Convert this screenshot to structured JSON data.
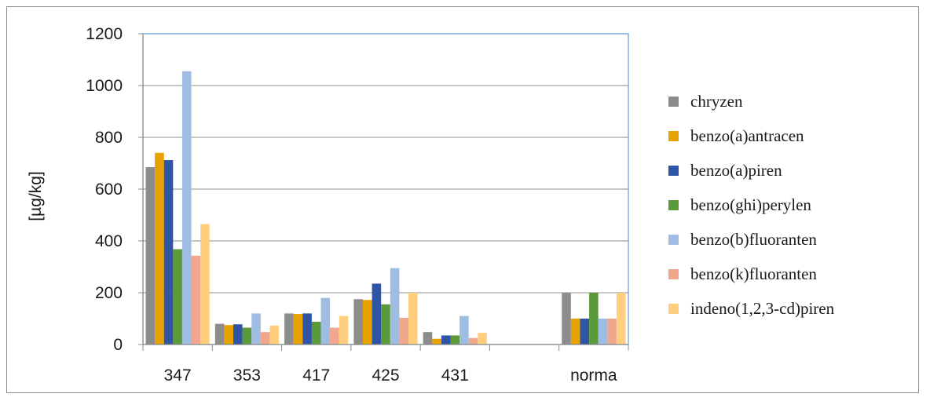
{
  "chart_data": {
    "type": "bar",
    "ylabel": "[µg/kg]",
    "xlabel": "",
    "title": "",
    "ylim": [
      0,
      1200
    ],
    "yticks": [
      0,
      200,
      400,
      600,
      800,
      1000,
      1200
    ],
    "categories": [
      "347",
      "353",
      "417",
      "425",
      "431",
      "",
      "norma"
    ],
    "grid": true,
    "legend_position": "right",
    "series": [
      {
        "name": "chryzen",
        "color": "#8c8c8c",
        "values": [
          685,
          80,
          120,
          175,
          48,
          null,
          200
        ]
      },
      {
        "name": "benzo(a)antracen",
        "color": "#e8a200",
        "values": [
          740,
          75,
          118,
          172,
          22,
          null,
          100
        ]
      },
      {
        "name": "benzo(a)piren",
        "color": "#2f55a4",
        "values": [
          712,
          78,
          120,
          235,
          35,
          null,
          100
        ]
      },
      {
        "name": "benzo(ghi)perylen",
        "color": "#5b9a3a",
        "values": [
          368,
          65,
          88,
          155,
          35,
          null,
          200
        ]
      },
      {
        "name": "benzo(b)fluoranten",
        "color": "#9fbde3",
        "values": [
          1055,
          120,
          180,
          295,
          110,
          null,
          100
        ]
      },
      {
        "name": "benzo(k)fluoranten",
        "color": "#f1a68e",
        "values": [
          343,
          48,
          65,
          103,
          25,
          null,
          100
        ]
      },
      {
        "name": "indeno(1,2,3-cd)piren",
        "color": "#ffcf7f",
        "values": [
          465,
          73,
          110,
          200,
          45,
          null,
          200
        ]
      }
    ]
  }
}
